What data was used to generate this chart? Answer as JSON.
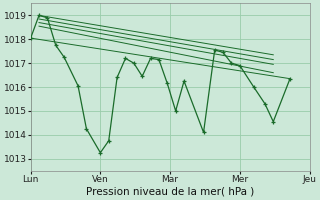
{
  "background_color": "#cce8d8",
  "grid_color": "#99ccaa",
  "line_color": "#1a6b2a",
  "title": "Pression niveau de la mer( hPa )",
  "ylim": [
    1012.5,
    1019.5
  ],
  "yticks": [
    1013,
    1014,
    1015,
    1016,
    1017,
    1018,
    1019
  ],
  "xlim": [
    0,
    100
  ],
  "x_ticks_pos": [
    0,
    25,
    50,
    75,
    100
  ],
  "x_tick_labels": [
    "Lun",
    "Ven",
    "Mar",
    "Mer",
    "Jeu"
  ],
  "main_x": [
    0,
    3,
    6,
    9,
    12,
    17,
    20,
    25,
    28,
    31,
    34,
    37,
    40,
    43,
    46,
    49,
    52,
    55,
    62,
    66,
    69,
    72,
    75,
    80,
    84,
    87,
    93
  ],
  "main_y": [
    1018.05,
    1019.0,
    1018.9,
    1017.75,
    1017.25,
    1016.05,
    1014.25,
    1013.25,
    1013.75,
    1016.4,
    1017.2,
    1017.0,
    1016.45,
    1017.2,
    1017.15,
    1016.15,
    1015.0,
    1016.25,
    1014.1,
    1017.55,
    1017.45,
    1017.0,
    1016.9,
    1016.0,
    1015.3,
    1014.55,
    1016.35
  ],
  "trend1_x": [
    3,
    87
  ],
  "trend1_y": [
    1019.0,
    1017.35
  ],
  "trend2_x": [
    3,
    87
  ],
  "trend2_y": [
    1018.85,
    1017.15
  ],
  "trend3_x": [
    3,
    87
  ],
  "trend3_y": [
    1018.7,
    1016.95
  ],
  "trend4_x": [
    3,
    87
  ],
  "trend4_y": [
    1018.55,
    1016.6
  ],
  "trend5_x": [
    0,
    93
  ],
  "trend5_y": [
    1018.05,
    1016.35
  ]
}
